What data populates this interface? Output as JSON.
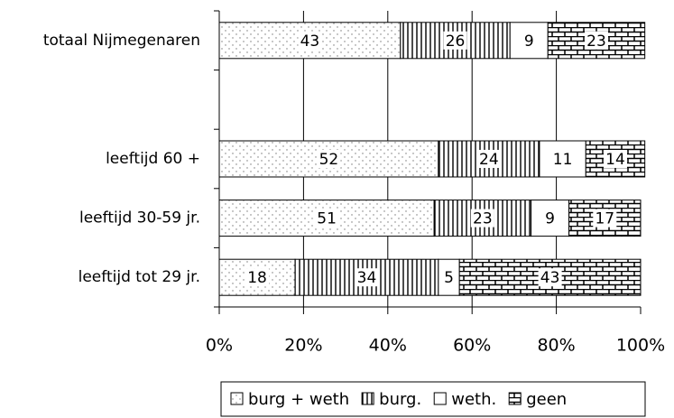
{
  "chart_data": {
    "type": "stacked-barh",
    "categories": [
      "totaal Nijmegenaren",
      null,
      "leeftijd 60 +",
      "leeftijd 30-59 jr.",
      "leeftijd tot 29 jr."
    ],
    "series": [
      {
        "name": "burg + weth",
        "color": "#ffffff",
        "pattern": "dots",
        "values": [
          43,
          null,
          52,
          51,
          18
        ]
      },
      {
        "name": "burg.",
        "color": "#ffffff",
        "pattern": "vertical",
        "values": [
          26,
          null,
          24,
          23,
          34
        ]
      },
      {
        "name": "weth.",
        "color": "#ffffff",
        "pattern": "none",
        "values": [
          9,
          null,
          11,
          9,
          5
        ]
      },
      {
        "name": "geen",
        "color": "#ffffff",
        "pattern": "brick",
        "values": [
          23,
          null,
          14,
          17,
          43
        ]
      }
    ],
    "xlim": [
      0,
      100
    ],
    "xticks": [
      {
        "value": 0,
        "label": "0%"
      },
      {
        "value": 20,
        "label": "20%"
      },
      {
        "value": 40,
        "label": "40%"
      },
      {
        "value": 60,
        "label": "60%"
      },
      {
        "value": 80,
        "label": "80%"
      },
      {
        "value": 100,
        "label": "100%"
      }
    ],
    "grid": true,
    "legend": "bottom"
  }
}
